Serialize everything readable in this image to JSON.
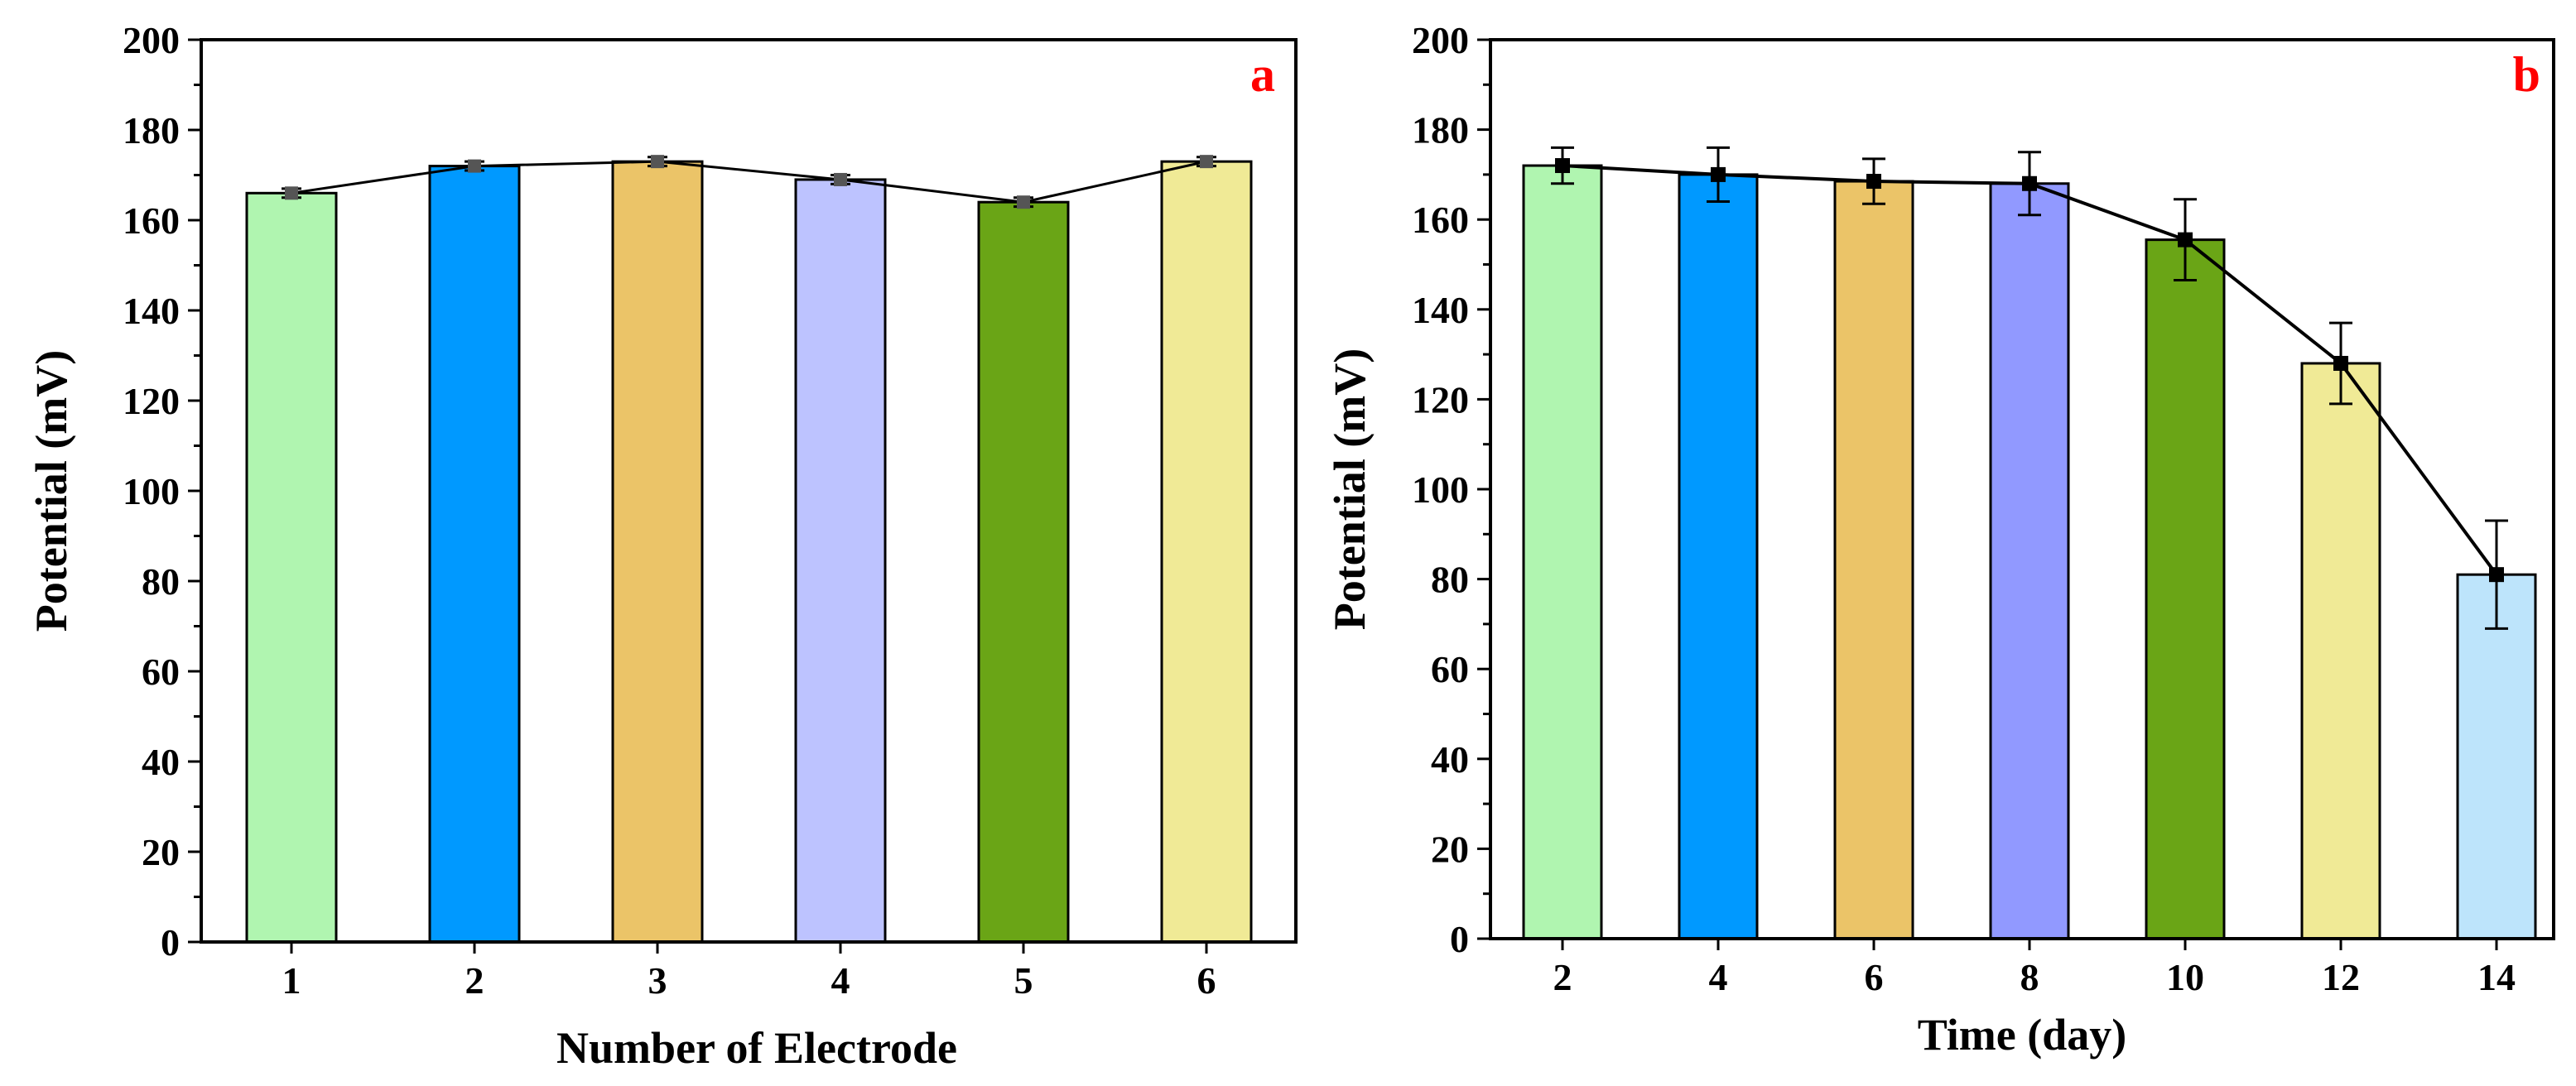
{
  "chart_data": [
    {
      "type": "bar",
      "panel_label": "a",
      "title": "",
      "xlabel": "Number of Electrode",
      "ylabel": "Potential (mV)",
      "categories": [
        "1",
        "2",
        "3",
        "4",
        "5",
        "6"
      ],
      "values": [
        166,
        172,
        173,
        169,
        164,
        173
      ],
      "errors": [
        1,
        1,
        1,
        1,
        1,
        1
      ],
      "bar_colors": [
        "#b0f5b0",
        "#0099ff",
        "#ebc468",
        "#bdc3ff",
        "#6aa516",
        "#f0ea96"
      ],
      "line_color": "#000000",
      "marker_color": "#555555",
      "ylim": [
        0,
        200
      ],
      "yticks": [
        0,
        20,
        40,
        60,
        80,
        100,
        120,
        140,
        160,
        180,
        200
      ],
      "ytick_labels": [
        "0",
        "20",
        "40",
        "60",
        "80",
        "100",
        "120",
        "140",
        "160",
        "180",
        "200"
      ],
      "grid": false,
      "overlay_line": true
    },
    {
      "type": "bar",
      "panel_label": "b",
      "title": "",
      "xlabel": "Time (day)",
      "ylabel": "Potential (mV)",
      "categories": [
        "2",
        "4",
        "6",
        "8",
        "10",
        "12",
        "14"
      ],
      "values": [
        172,
        170,
        168.5,
        168,
        155.5,
        128,
        81
      ],
      "errors": [
        4,
        6,
        5,
        7,
        9,
        9,
        12
      ],
      "bar_colors": [
        "#b0f5b0",
        "#0099ff",
        "#ebc468",
        "#9199ff",
        "#6aa516",
        "#f0ea96",
        "#bde4fb"
      ],
      "line_color": "#000000",
      "marker_color": "#000000",
      "ylim": [
        0,
        200
      ],
      "yticks": [
        0,
        20,
        40,
        60,
        80,
        100,
        120,
        140,
        160,
        180,
        200
      ],
      "ytick_labels": [
        "0",
        "20",
        "40",
        "60",
        "80",
        "100",
        "120",
        "140",
        "160",
        "180",
        "200"
      ],
      "grid": false,
      "overlay_line": true
    }
  ]
}
